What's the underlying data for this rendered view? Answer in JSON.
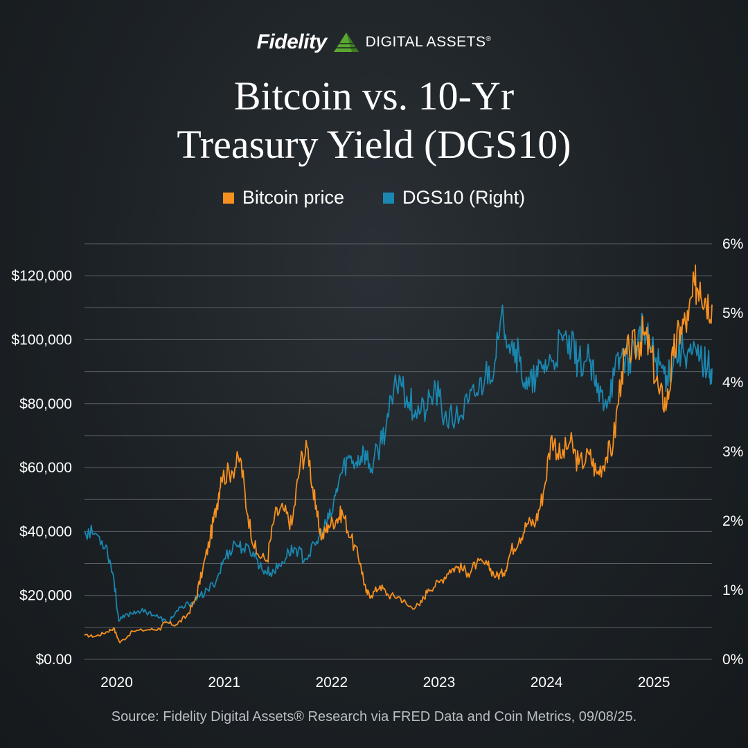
{
  "header": {
    "brand_name": "Fidelity",
    "brand_sub": "DIGITAL ASSETS",
    "brand_reg": "®",
    "title_line1": "Bitcoin vs. 10-Yr",
    "title_line2": "Treasury Yield (DGS10)"
  },
  "footer": {
    "source": "Source: Fidelity Digital Assets® Research via FRED Data and Coin Metrics, 09/08/25."
  },
  "colors": {
    "bitcoin": "#f7901e",
    "dgs10": "#1a87b0",
    "grid": "#5b6166",
    "background": "#1c2125"
  },
  "chart_data": {
    "type": "line",
    "title": "Bitcoin vs. 10-Yr Treasury Yield (DGS10)",
    "xlabel": "",
    "ylabel": "",
    "grid": true,
    "legend_placement": "top-center",
    "x_ticks": [
      "2020",
      "2021",
      "2022",
      "2023",
      "2024",
      "2025"
    ],
    "y_left": {
      "ticks": [
        "$0.00",
        "$20,000",
        "$40,000",
        "$60,000",
        "$80,000",
        "$100,000",
        "$120,000"
      ],
      "lim": [
        0,
        130000
      ]
    },
    "y_right": {
      "ticks": [
        "0%",
        "1%",
        "2%",
        "3%",
        "4%",
        "5%",
        "6%"
      ],
      "lim": [
        0,
        6
      ]
    },
    "x_range": [
      2019.85,
      2025.69
    ],
    "series": [
      {
        "name": "Bitcoin price",
        "axis": "left",
        "points": [
          [
            2019.85,
            7500
          ],
          [
            2019.95,
            7200
          ],
          [
            2020.05,
            8500
          ],
          [
            2020.12,
            9800
          ],
          [
            2020.18,
            5200
          ],
          [
            2020.3,
            8800
          ],
          [
            2020.45,
            9300
          ],
          [
            2020.55,
            9500
          ],
          [
            2020.6,
            11500
          ],
          [
            2020.7,
            10800
          ],
          [
            2020.8,
            13500
          ],
          [
            2020.88,
            18500
          ],
          [
            2020.95,
            28000
          ],
          [
            2021.02,
            38000
          ],
          [
            2021.08,
            48000
          ],
          [
            2021.12,
            57000
          ],
          [
            2021.22,
            59000
          ],
          [
            2021.3,
            63000
          ],
          [
            2021.37,
            45000
          ],
          [
            2021.45,
            33000
          ],
          [
            2021.55,
            31000
          ],
          [
            2021.62,
            45000
          ],
          [
            2021.7,
            47000
          ],
          [
            2021.78,
            42000
          ],
          [
            2021.86,
            62000
          ],
          [
            2021.93,
            66000
          ],
          [
            2022.0,
            47000
          ],
          [
            2022.06,
            38000
          ],
          [
            2022.12,
            42000
          ],
          [
            2022.2,
            44000
          ],
          [
            2022.25,
            46000
          ],
          [
            2022.33,
            38000
          ],
          [
            2022.42,
            30000
          ],
          [
            2022.47,
            21000
          ],
          [
            2022.52,
            20000
          ],
          [
            2022.6,
            23000
          ],
          [
            2022.68,
            20000
          ],
          [
            2022.78,
            19500
          ],
          [
            2022.87,
            16500
          ],
          [
            2022.97,
            16800
          ],
          [
            2023.05,
            22000
          ],
          [
            2023.15,
            24000
          ],
          [
            2023.25,
            28000
          ],
          [
            2023.33,
            29000
          ],
          [
            2023.42,
            27000
          ],
          [
            2023.5,
            30000
          ],
          [
            2023.6,
            29500
          ],
          [
            2023.68,
            26000
          ],
          [
            2023.75,
            27000
          ],
          [
            2023.82,
            34000
          ],
          [
            2023.9,
            38000
          ],
          [
            2023.97,
            42500
          ],
          [
            2024.05,
            43000
          ],
          [
            2024.12,
            52000
          ],
          [
            2024.2,
            70000
          ],
          [
            2024.28,
            63000
          ],
          [
            2024.37,
            68000
          ],
          [
            2024.45,
            61000
          ],
          [
            2024.55,
            64000
          ],
          [
            2024.62,
            58000
          ],
          [
            2024.7,
            63000
          ],
          [
            2024.77,
            67000
          ],
          [
            2024.85,
            90000
          ],
          [
            2024.92,
            97000
          ],
          [
            2025.0,
            98000
          ],
          [
            2025.05,
            102000
          ],
          [
            2025.12,
            96000
          ],
          [
            2025.2,
            83000
          ],
          [
            2025.27,
            80000
          ],
          [
            2025.33,
            95000
          ],
          [
            2025.4,
            104000
          ],
          [
            2025.47,
            106000
          ],
          [
            2025.53,
            117000
          ],
          [
            2025.58,
            118000
          ],
          [
            2025.63,
            113000
          ],
          [
            2025.69,
            111000
          ]
        ]
      },
      {
        "name": "DGS10 (Right)",
        "axis": "right",
        "points": [
          [
            2019.85,
            1.85
          ],
          [
            2019.95,
            1.82
          ],
          [
            2020.05,
            1.65
          ],
          [
            2020.12,
            1.2
          ],
          [
            2020.17,
            0.55
          ],
          [
            2020.25,
            0.65
          ],
          [
            2020.35,
            0.7
          ],
          [
            2020.45,
            0.68
          ],
          [
            2020.55,
            0.6
          ],
          [
            2020.62,
            0.53
          ],
          [
            2020.72,
            0.7
          ],
          [
            2020.82,
            0.8
          ],
          [
            2020.92,
            0.9
          ],
          [
            2021.0,
            1.0
          ],
          [
            2021.08,
            1.15
          ],
          [
            2021.15,
            1.45
          ],
          [
            2021.25,
            1.68
          ],
          [
            2021.33,
            1.6
          ],
          [
            2021.42,
            1.55
          ],
          [
            2021.5,
            1.3
          ],
          [
            2021.58,
            1.25
          ],
          [
            2021.67,
            1.35
          ],
          [
            2021.75,
            1.55
          ],
          [
            2021.82,
            1.6
          ],
          [
            2021.9,
            1.45
          ],
          [
            2022.0,
            1.65
          ],
          [
            2022.08,
            1.9
          ],
          [
            2022.15,
            2.1
          ],
          [
            2022.22,
            2.6
          ],
          [
            2022.3,
            2.9
          ],
          [
            2022.38,
            2.85
          ],
          [
            2022.45,
            3.0
          ],
          [
            2022.52,
            2.75
          ],
          [
            2022.6,
            3.1
          ],
          [
            2022.68,
            3.5
          ],
          [
            2022.78,
            4.1
          ],
          [
            2022.85,
            3.8
          ],
          [
            2022.93,
            3.6
          ],
          [
            2023.03,
            3.6
          ],
          [
            2023.12,
            3.9
          ],
          [
            2023.2,
            3.5
          ],
          [
            2023.3,
            3.45
          ],
          [
            2023.42,
            3.7
          ],
          [
            2023.5,
            3.85
          ],
          [
            2023.58,
            4.1
          ],
          [
            2023.67,
            4.3
          ],
          [
            2023.75,
            4.9
          ],
          [
            2023.83,
            4.6
          ],
          [
            2023.9,
            4.3
          ],
          [
            2023.97,
            3.9
          ],
          [
            2024.05,
            4.05
          ],
          [
            2024.12,
            4.25
          ],
          [
            2024.2,
            4.3
          ],
          [
            2024.3,
            4.6
          ],
          [
            2024.38,
            4.5
          ],
          [
            2024.45,
            4.3
          ],
          [
            2024.55,
            4.3
          ],
          [
            2024.62,
            3.85
          ],
          [
            2024.7,
            3.75
          ],
          [
            2024.78,
            4.1
          ],
          [
            2024.85,
            4.4
          ],
          [
            2024.92,
            4.35
          ],
          [
            2025.0,
            4.6
          ],
          [
            2025.05,
            4.75
          ],
          [
            2025.12,
            4.5
          ],
          [
            2025.2,
            4.25
          ],
          [
            2025.27,
            4.1
          ],
          [
            2025.35,
            4.4
          ],
          [
            2025.42,
            4.5
          ],
          [
            2025.5,
            4.4
          ],
          [
            2025.58,
            4.35
          ],
          [
            2025.65,
            4.25
          ],
          [
            2025.69,
            4.2
          ]
        ]
      }
    ]
  }
}
